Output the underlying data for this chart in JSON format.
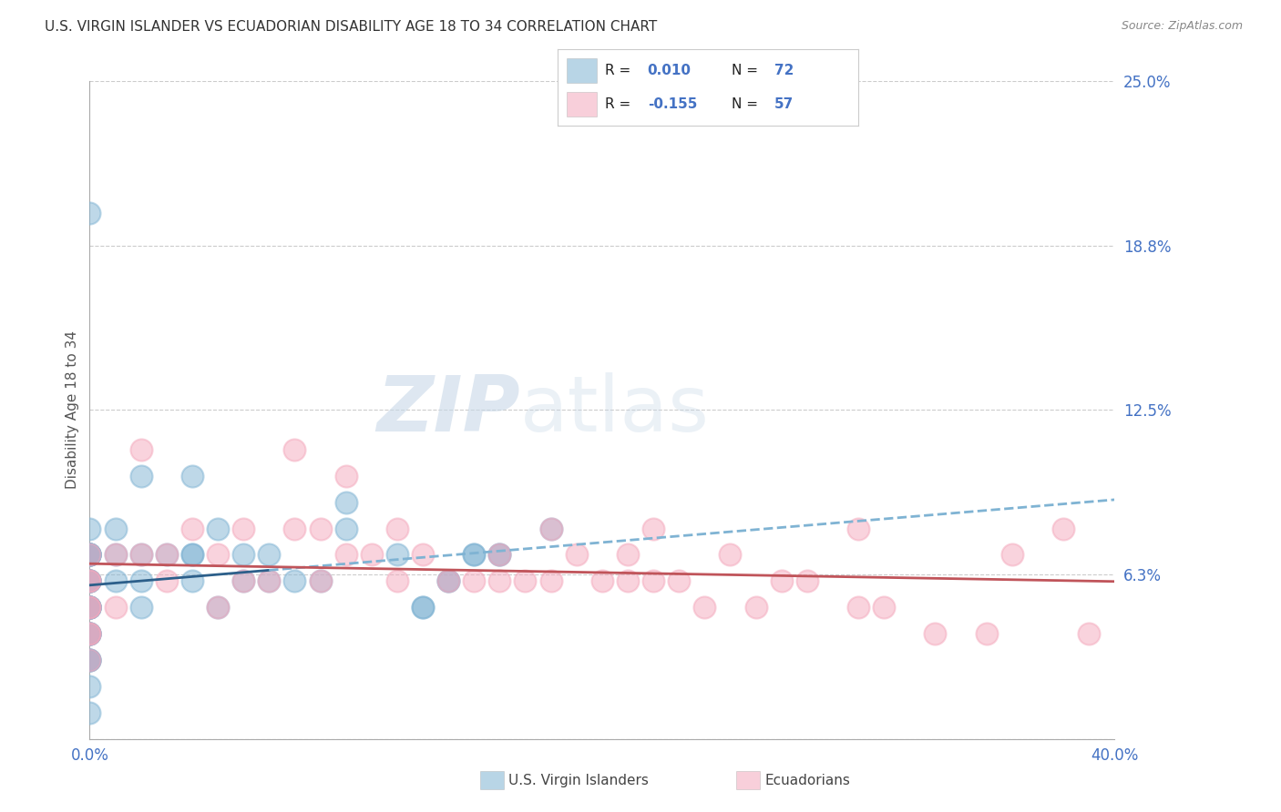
{
  "title": "U.S. VIRGIN ISLANDER VS ECUADORIAN DISABILITY AGE 18 TO 34 CORRELATION CHART",
  "source": "Source: ZipAtlas.com",
  "ylabel": "Disability Age 18 to 34",
  "xlim": [
    0.0,
    0.4
  ],
  "ylim": [
    0.0,
    0.25
  ],
  "x_tick_labels": [
    "0.0%",
    "40.0%"
  ],
  "y_ticks": [
    0.0,
    0.0625,
    0.125,
    0.1875,
    0.25
  ],
  "y_tick_labels": [
    "",
    "6.3%",
    "12.5%",
    "18.8%",
    "25.0%"
  ],
  "blue_dot_color": "#7fb3d3",
  "pink_dot_color": "#f4a8bc",
  "blue_line_color": "#2c5f8a",
  "pink_line_color": "#c0545a",
  "grid_color": "#cccccc",
  "watermark_zip": "ZIP",
  "watermark_atlas": "atlas",
  "blue_scatter_x": [
    0.0,
    0.0,
    0.0,
    0.0,
    0.0,
    0.0,
    0.0,
    0.0,
    0.0,
    0.0,
    0.0,
    0.0,
    0.0,
    0.0,
    0.0,
    0.0,
    0.0,
    0.0,
    0.0,
    0.0,
    0.0,
    0.0,
    0.0,
    0.0,
    0.0,
    0.0,
    0.0,
    0.0,
    0.0,
    0.0,
    0.0,
    0.0,
    0.0,
    0.0,
    0.0,
    0.0,
    0.0,
    0.0,
    0.0,
    0.0,
    0.01,
    0.01,
    0.01,
    0.02,
    0.02,
    0.02,
    0.02,
    0.03,
    0.04,
    0.04,
    0.04,
    0.04,
    0.05,
    0.05,
    0.06,
    0.06,
    0.07,
    0.07,
    0.08,
    0.09,
    0.1,
    0.1,
    0.12,
    0.13,
    0.13,
    0.14,
    0.14,
    0.15,
    0.15,
    0.16,
    0.16,
    0.18
  ],
  "blue_scatter_y": [
    0.2,
    0.08,
    0.07,
    0.07,
    0.07,
    0.07,
    0.07,
    0.07,
    0.07,
    0.07,
    0.07,
    0.06,
    0.06,
    0.06,
    0.06,
    0.06,
    0.06,
    0.06,
    0.05,
    0.05,
    0.05,
    0.05,
    0.05,
    0.05,
    0.05,
    0.05,
    0.05,
    0.05,
    0.04,
    0.04,
    0.04,
    0.04,
    0.04,
    0.04,
    0.03,
    0.03,
    0.03,
    0.03,
    0.02,
    0.01,
    0.08,
    0.07,
    0.06,
    0.1,
    0.07,
    0.06,
    0.05,
    0.07,
    0.1,
    0.07,
    0.07,
    0.06,
    0.08,
    0.05,
    0.07,
    0.06,
    0.07,
    0.06,
    0.06,
    0.06,
    0.09,
    0.08,
    0.07,
    0.05,
    0.05,
    0.06,
    0.06,
    0.07,
    0.07,
    0.07,
    0.07,
    0.08
  ],
  "pink_scatter_x": [
    0.0,
    0.0,
    0.0,
    0.0,
    0.0,
    0.0,
    0.0,
    0.0,
    0.01,
    0.01,
    0.02,
    0.02,
    0.03,
    0.03,
    0.04,
    0.05,
    0.05,
    0.06,
    0.06,
    0.07,
    0.08,
    0.08,
    0.09,
    0.09,
    0.1,
    0.1,
    0.11,
    0.12,
    0.12,
    0.13,
    0.14,
    0.15,
    0.16,
    0.16,
    0.17,
    0.18,
    0.18,
    0.19,
    0.2,
    0.21,
    0.21,
    0.22,
    0.22,
    0.23,
    0.24,
    0.25,
    0.26,
    0.27,
    0.28,
    0.3,
    0.3,
    0.31,
    0.33,
    0.35,
    0.36,
    0.38,
    0.39
  ],
  "pink_scatter_y": [
    0.07,
    0.06,
    0.06,
    0.05,
    0.05,
    0.04,
    0.04,
    0.03,
    0.07,
    0.05,
    0.11,
    0.07,
    0.07,
    0.06,
    0.08,
    0.07,
    0.05,
    0.08,
    0.06,
    0.06,
    0.11,
    0.08,
    0.08,
    0.06,
    0.1,
    0.07,
    0.07,
    0.08,
    0.06,
    0.07,
    0.06,
    0.06,
    0.07,
    0.06,
    0.06,
    0.08,
    0.06,
    0.07,
    0.06,
    0.07,
    0.06,
    0.08,
    0.06,
    0.06,
    0.05,
    0.07,
    0.05,
    0.06,
    0.06,
    0.08,
    0.05,
    0.05,
    0.04,
    0.04,
    0.07,
    0.08,
    0.04
  ]
}
